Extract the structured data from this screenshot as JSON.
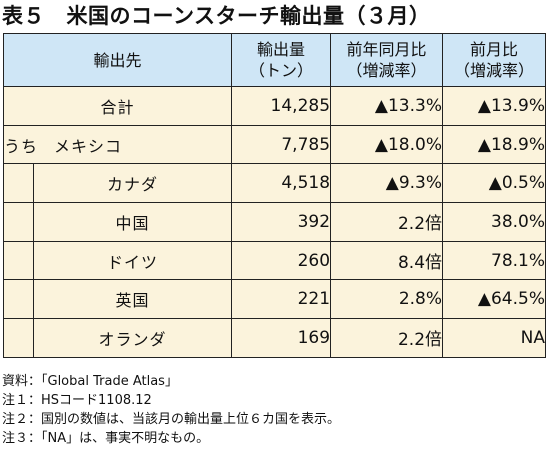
{
  "title": "表５　米国のコーンスターチ輸出量（３月）",
  "table": {
    "headers": {
      "destination": "輸出先",
      "volume": "輸出量\n（トン）",
      "yoy": "前年同月比\n（増減率）",
      "mom": "前月比\n（増減率）"
    },
    "total": {
      "label": "合計",
      "volume": "14,285",
      "yoy": "▲13.3%",
      "mom": "▲13.9%"
    },
    "uchi_prefix": "うち",
    "rows": [
      {
        "label": "メキシコ",
        "volume": "7,785",
        "yoy": "▲18.0%",
        "mom": "▲18.9%"
      },
      {
        "label": "カナダ",
        "volume": "4,518",
        "yoy": "▲9.3%",
        "mom": "▲0.5%"
      },
      {
        "label": "中国",
        "volume": "392",
        "yoy": "2.2倍",
        "mom": "38.0%"
      },
      {
        "label": "ドイツ",
        "volume": "260",
        "yoy": "8.4倍",
        "mom": "78.1%"
      },
      {
        "label": "英国",
        "volume": "221",
        "yoy": "2.8%",
        "mom": "▲64.5%"
      },
      {
        "label": "オランダ",
        "volume": "169",
        "yoy": "2.2倍",
        "mom": "NA"
      }
    ]
  },
  "notes": [
    "資料：「Global Trade Atlas」",
    "注１：HSコード1108.12",
    "注２：国別の数値は、当該月の輸出量上位６カ国を表示。",
    "注３：「NA」は、事実不明なもの。"
  ]
}
